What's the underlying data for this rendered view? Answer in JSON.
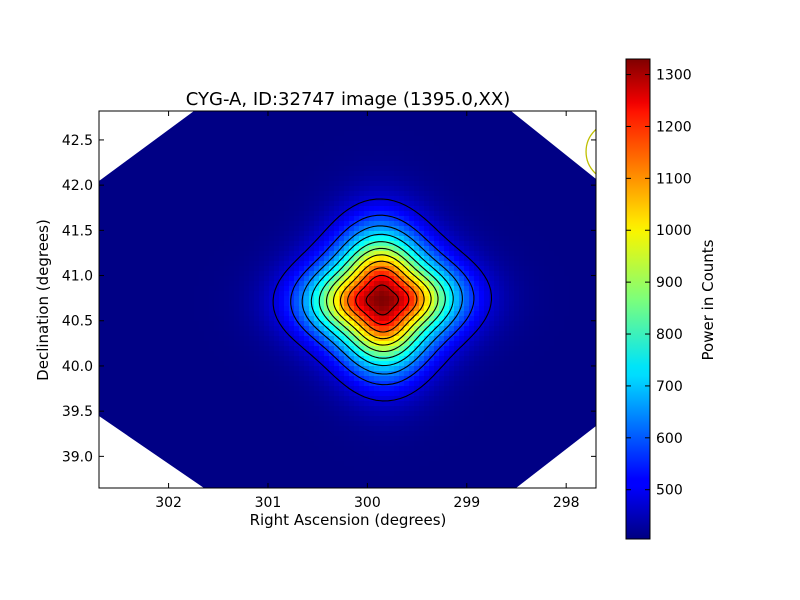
{
  "chart_data": {
    "type": "heatmap",
    "title": "CYG-A, ID:32747 image (1395.0,XX)",
    "xlabel": "Right Ascension (degrees)",
    "ylabel": "Declination (degrees)",
    "xlim": [
      302.7,
      297.7
    ],
    "ylim": [
      38.65,
      42.82
    ],
    "x_ticks": [
      302,
      301,
      300,
      299,
      298
    ],
    "x_tick_labels": [
      "302",
      "301",
      "300",
      "299",
      "298"
    ],
    "y_ticks": [
      39.0,
      39.5,
      40.0,
      40.5,
      41.0,
      41.5,
      42.0,
      42.5
    ],
    "y_tick_labels": [
      "39.0",
      "39.5",
      "40.0",
      "40.5",
      "41.0",
      "41.5",
      "42.0",
      "42.5"
    ],
    "peak": {
      "ra": 299.85,
      "dec": 40.73,
      "value": 1330
    },
    "background_value": 410,
    "contour_levels": [
      480,
      560,
      640,
      720,
      800,
      880,
      960,
      1040,
      1120,
      1200,
      1280
    ],
    "beam_circle": {
      "ra": 297.5,
      "dec": 42.37,
      "radius_deg": 0.33,
      "color": "#bfbf00"
    },
    "colorbar": {
      "label": "Power in Counts",
      "min": 405,
      "max": 1330,
      "ticks": [
        500,
        600,
        700,
        800,
        900,
        1000,
        1100,
        1200,
        1300
      ],
      "tick_labels": [
        "500",
        "600",
        "700",
        "800",
        "900",
        "1000",
        "1100",
        "1200",
        "1300"
      ],
      "colormap": "jet"
    },
    "grid": false
  }
}
